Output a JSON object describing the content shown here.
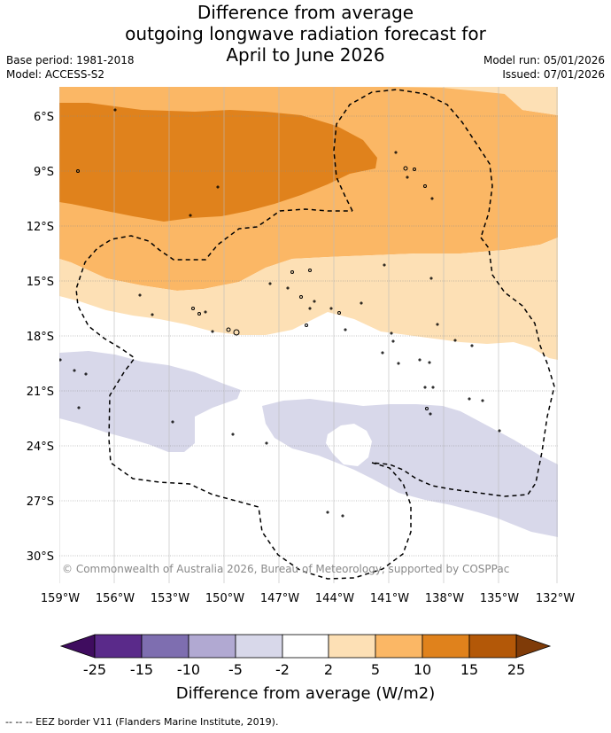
{
  "title": {
    "line1": "Difference from average",
    "line2": "outgoing longwave radiation forecast for",
    "line3": "April to June 2026"
  },
  "meta": {
    "base_period": "Base period: 1981-2018",
    "model": "Model: ACCESS-S2",
    "model_run": "Model run: 05/01/2026",
    "issued": "Issued: 07/01/2026"
  },
  "map": {
    "lat_labels": [
      "6°S",
      "9°S",
      "12°S",
      "15°S",
      "18°S",
      "21°S",
      "24°S",
      "27°S",
      "30°S"
    ],
    "lon_labels": [
      "159°W",
      "156°W",
      "153°W",
      "150°W",
      "147°W",
      "144°W",
      "141°W",
      "138°W",
      "135°W",
      "132°W"
    ],
    "copyright": "© Commonwealth of Australia 2026, Bureau of Meteorology, supported by COSPPac"
  },
  "colorbar": {
    "ticks": [
      "-25",
      "-15",
      "-10",
      "-5",
      "-2",
      "2",
      "5",
      "10",
      "15",
      "25"
    ],
    "colors": [
      "#3f0c5f",
      "#5a2a8a",
      "#7e6eb0",
      "#b1a9d2",
      "#d8d8ea",
      "#ffffff",
      "#fde0b5",
      "#fbb765",
      "#e0821c",
      "#b35808",
      "#7f3b08"
    ],
    "label": "Difference from average (W/m2)"
  },
  "footer": {
    "text": "--  --  -- EEZ border V11 (Flanders Marine Institute, 2019)."
  }
}
